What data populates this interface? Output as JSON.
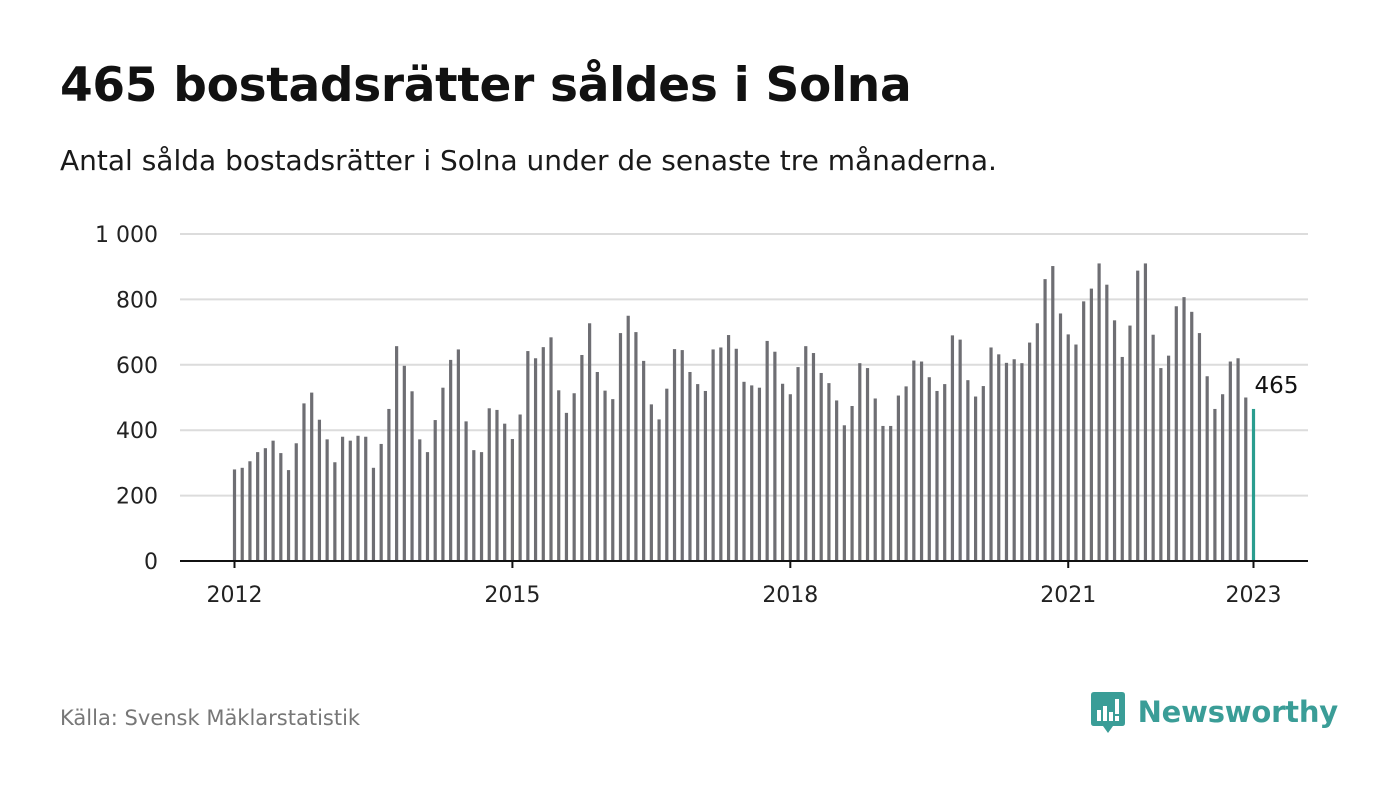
{
  "title": "465 bostadsrätter såldes i Solna",
  "subtitle": "Antal sålda bostadsrätter i Solna under de senaste tre månaderna.",
  "source": "Källa: Svensk Mäklarstatistik",
  "brand": {
    "name": "Newsworthy",
    "logo_icon": "bar-chart-speech-bubble-icon",
    "color": "#3a9d97"
  },
  "colors": {
    "bar": "#6e6e73",
    "highlight": "#2a9d8f",
    "grid": "#dcdcdc",
    "axis": "#111111"
  },
  "chart_data": {
    "type": "bar",
    "start": "2012-01",
    "ylim": [
      0,
      1000
    ],
    "yticks": [
      0,
      200,
      400,
      600,
      800,
      1000
    ],
    "ytick_labels": [
      "0",
      "200",
      "400",
      "600",
      "800",
      "1 000"
    ],
    "xtick_labels": [
      "2012",
      "2015",
      "2018",
      "2021",
      "2023"
    ],
    "xtick_dates": [
      "2012-01",
      "2015-01",
      "2018-01",
      "2021-01",
      "2023-01"
    ],
    "grid": true,
    "highlight_label": "465",
    "highlight_date": "2023-01",
    "dates": [
      "2012-01",
      "2012-02",
      "2012-03",
      "2012-04",
      "2012-05",
      "2012-06",
      "2012-07",
      "2012-08",
      "2012-09",
      "2012-10",
      "2012-11",
      "2012-12",
      "2013-01",
      "2013-02",
      "2013-03",
      "2013-04",
      "2013-05",
      "2013-06",
      "2013-07",
      "2013-08",
      "2013-09",
      "2013-10",
      "2013-11",
      "2013-12",
      "2014-01",
      "2014-02",
      "2014-03",
      "2014-04",
      "2014-05",
      "2014-06",
      "2014-07",
      "2014-08",
      "2014-09",
      "2014-10",
      "2014-11",
      "2014-12",
      "2015-01",
      "2015-02",
      "2015-03",
      "2015-04",
      "2015-05",
      "2015-06",
      "2015-07",
      "2015-08",
      "2015-09",
      "2015-10",
      "2015-11",
      "2015-12",
      "2016-01",
      "2016-02",
      "2016-03",
      "2016-04",
      "2016-05",
      "2016-06",
      "2016-07",
      "2016-08",
      "2016-09",
      "2016-10",
      "2016-11",
      "2016-12",
      "2017-01",
      "2017-02",
      "2017-03",
      "2017-04",
      "2017-05",
      "2017-06",
      "2017-07",
      "2017-08",
      "2017-09",
      "2017-10",
      "2017-11",
      "2017-12",
      "2018-01",
      "2018-02",
      "2018-03",
      "2018-04",
      "2018-05",
      "2018-06",
      "2018-07",
      "2018-08",
      "2018-09",
      "2018-10",
      "2018-11",
      "2018-12",
      "2019-01",
      "2019-02",
      "2019-03",
      "2019-04",
      "2019-05",
      "2019-06",
      "2019-07",
      "2019-08",
      "2019-09",
      "2019-10",
      "2019-11",
      "2019-12",
      "2020-01",
      "2020-02",
      "2020-03",
      "2020-04",
      "2020-05",
      "2020-06",
      "2020-07",
      "2020-08",
      "2020-09",
      "2020-10",
      "2020-11",
      "2020-12",
      "2021-01",
      "2021-02",
      "2021-03",
      "2021-04",
      "2021-05",
      "2021-06",
      "2021-07",
      "2021-08",
      "2021-09",
      "2021-10",
      "2021-11",
      "2021-12",
      "2022-01",
      "2022-02",
      "2022-03",
      "2022-04",
      "2022-05",
      "2022-06",
      "2022-07",
      "2022-08",
      "2022-09",
      "2022-10",
      "2022-11",
      "2022-12",
      "2023-01"
    ],
    "values": [
      280,
      285,
      305,
      333,
      345,
      368,
      330,
      278,
      360,
      482,
      515,
      432,
      372,
      302,
      380,
      368,
      383,
      380,
      285,
      358,
      465,
      657,
      597,
      519,
      372,
      333,
      431,
      530,
      615,
      647,
      427,
      339,
      333,
      467,
      462,
      420,
      373,
      448,
      642,
      620,
      654,
      684,
      522,
      453,
      513,
      630,
      727,
      578,
      521,
      495,
      697,
      750,
      700,
      612,
      479,
      433,
      527,
      648,
      645,
      578,
      541,
      520,
      647,
      653,
      691,
      649,
      548,
      537,
      530,
      673,
      640,
      542,
      510,
      593,
      657,
      636,
      575,
      544,
      491,
      415,
      474,
      605,
      590,
      497,
      413,
      413,
      506,
      534,
      613,
      610,
      562,
      520,
      541,
      690,
      677,
      553,
      503,
      535,
      653,
      632,
      606,
      617,
      605,
      668,
      727,
      862,
      902,
      757,
      693,
      662,
      794,
      833,
      910,
      845,
      736,
      624,
      720,
      888,
      910,
      692,
      590,
      628,
      779,
      807,
      762,
      697,
      565,
      465,
      510,
      610,
      620,
      500,
      465
    ]
  }
}
